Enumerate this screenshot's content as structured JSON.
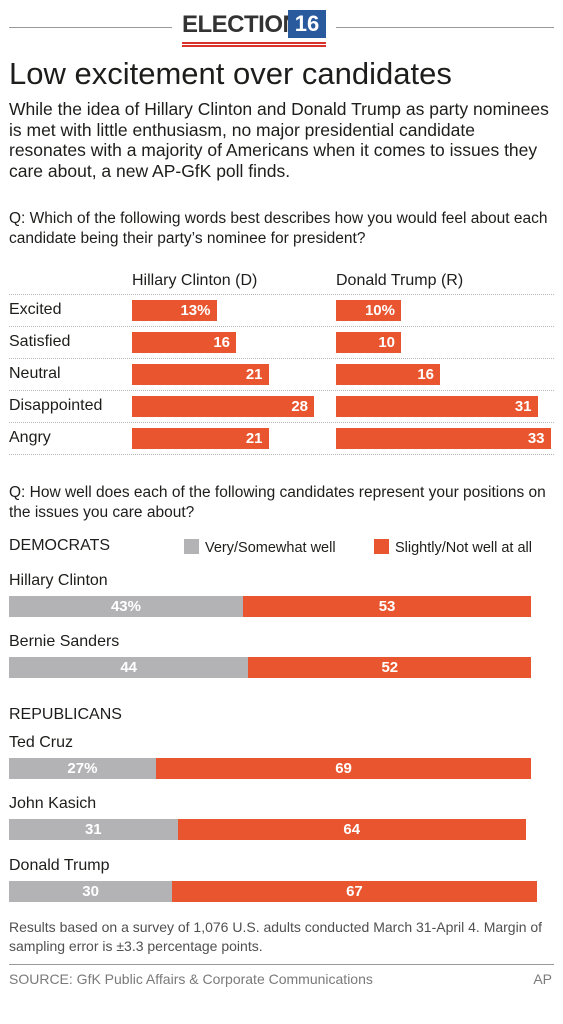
{
  "header": {
    "badge_word": "ELECTION",
    "badge_number": "16",
    "colors": {
      "badge_blue": "#2a5a9e",
      "stripe_red": "#d9312b"
    }
  },
  "title": "Low excitement over candidates",
  "subtitle": "While the idea of Hillary Clinton and Donald Trump as party nominees is met with little enthusiasm, no major presidential candidate resonates with a majority of Americans when it comes to issues they care about, a new AP-GfK poll finds.",
  "watermark": "AP",
  "colors": {
    "orange": "#e9552e",
    "gray": "#b3b3b5"
  },
  "chart_data": [
    {
      "type": "bar",
      "orientation": "horizontal",
      "question": "Q: Which of the following words best describes how you would feel about each candidate being their party’s nominee for president?",
      "categories": [
        "Excited",
        "Satisfied",
        "Neutral",
        "Disappointed",
        "Angry"
      ],
      "series": [
        {
          "name": "Hillary Clinton (D)",
          "values": [
            13,
            16,
            21,
            28,
            21
          ],
          "labels": [
            "13%",
            "16",
            "21",
            "28",
            "21"
          ]
        },
        {
          "name": "Donald Trump (R)",
          "values": [
            10,
            10,
            16,
            31,
            33
          ],
          "labels": [
            "10%",
            "10",
            "16",
            "31",
            "33"
          ]
        }
      ],
      "unit": "%",
      "xlim": [
        0,
        36
      ]
    },
    {
      "type": "bar",
      "orientation": "horizontal",
      "stacked": true,
      "question": "Q: How well does each of the following candidates represent your positions on the issues you care about?",
      "legend": [
        "Very/Somewhat well",
        "Slightly/Not well at all"
      ],
      "legend_position": "top-right",
      "groups": [
        {
          "name": "DEMOCRATS",
          "candidates": [
            {
              "name": "Hillary Clinton",
              "well": 43,
              "not_well": 53,
              "well_label": "43%",
              "not_well_label": "53"
            },
            {
              "name": "Bernie Sanders",
              "well": 44,
              "not_well": 52,
              "well_label": "44",
              "not_well_label": "52"
            }
          ]
        },
        {
          "name": "REPUBLICANS",
          "candidates": [
            {
              "name": "Ted Cruz",
              "well": 27,
              "not_well": 69,
              "well_label": "27%",
              "not_well_label": "69"
            },
            {
              "name": "John Kasich",
              "well": 31,
              "not_well": 64,
              "well_label": "31",
              "not_well_label": "64"
            },
            {
              "name": "Donald Trump",
              "well": 30,
              "not_well": 67,
              "well_label": "30",
              "not_well_label": "67"
            }
          ]
        }
      ],
      "unit": "%",
      "xlim": [
        0,
        100
      ]
    }
  ],
  "footnote": "Results based on a survey of 1,076 U.S. adults conducted March 31-April 4. Margin of sampling error is ±3.3 percentage points.",
  "source": "SOURCE: GfK Public Affairs & Corporate Communications",
  "credit": "AP"
}
